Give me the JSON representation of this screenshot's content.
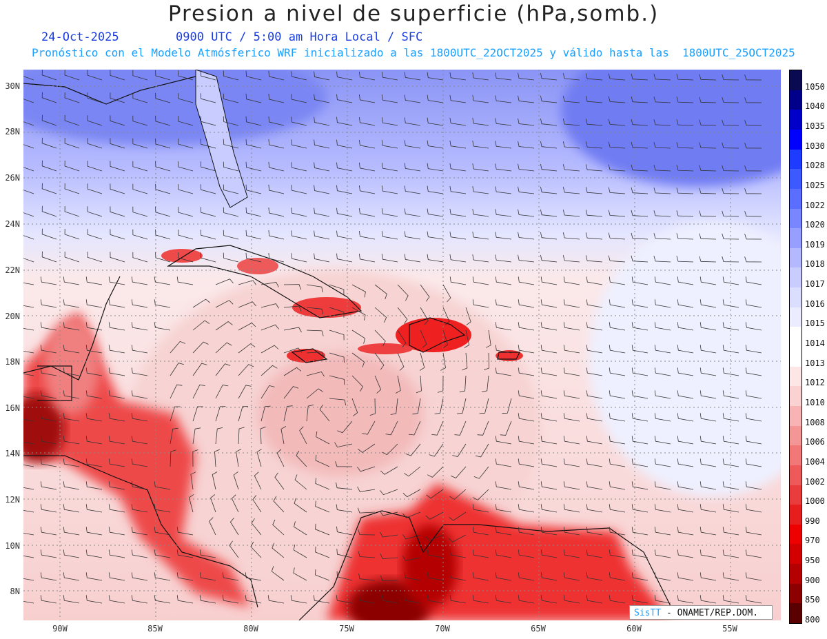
{
  "title": "Presion a nivel de superficie (hPa,somb.)",
  "date": "24-Oct-2025",
  "time": "0900 UTC / 5:00 am Hora Local / SFC",
  "forecast": "Pronóstico con el Modelo Atmósferico WRF inicializado a las 1800UTC_22OCT2025 y válido hasta las  1800UTC_25OCT2025",
  "lat_labels": [
    "30N",
    "28N",
    "26N",
    "24N",
    "22N",
    "20N",
    "18N",
    "16N",
    "14N",
    "12N",
    "10N",
    "8N"
  ],
  "lon_labels": [
    "90W",
    "85W",
    "80W",
    "75W",
    "70W",
    "65W",
    "60W",
    "55W"
  ],
  "colorbar": {
    "labels": [
      "1050",
      "1040",
      "1035",
      "1030",
      "1028",
      "1025",
      "1022",
      "1020",
      "1019",
      "1018",
      "1017",
      "1016",
      "1015",
      "1014",
      "1013",
      "1012",
      "1010",
      "1008",
      "1006",
      "1004",
      "1002",
      "1000",
      "990",
      "970",
      "950",
      "900",
      "850",
      "800"
    ],
    "colors": [
      "#0a0a50",
      "#00008a",
      "#0000c8",
      "#0000ff",
      "#1e3cff",
      "#3c5aff",
      "#5a6eff",
      "#7886ff",
      "#969eff",
      "#b4b8ff",
      "#c8ccff",
      "#dcdeff",
      "#ececff",
      "#ffffff",
      "#ffffff",
      "#fde6e6",
      "#fbd2d2",
      "#f8b4b4",
      "#f59696",
      "#f27878",
      "#ee5a5a",
      "#ea3c3c",
      "#e61e1e",
      "#ee0000",
      "#d20000",
      "#b40000",
      "#8c0000",
      "#5a0000"
    ]
  },
  "credit": {
    "logo": "SisTT",
    "text": "- ONAMET/REP.DOM."
  }
}
